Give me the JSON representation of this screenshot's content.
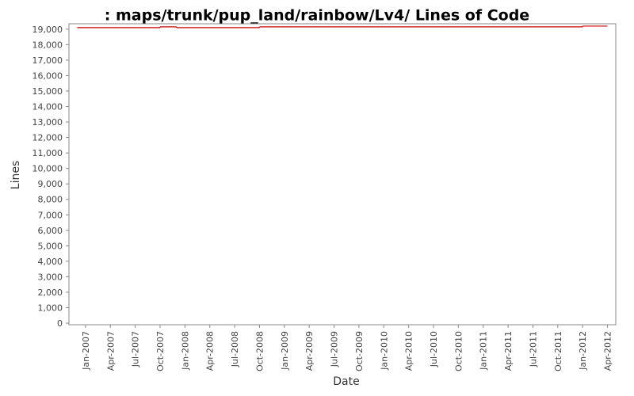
{
  "chart_data": {
    "type": "line",
    "title": ": maps/trunk/pup_land/rainbow/Lv4/ Lines of Code",
    "x_label": "Date",
    "y_label": "Lines",
    "x": [
      "2006-12",
      "2007-10",
      "2007-12",
      "2008-10",
      "2012-01",
      "2012-04"
    ],
    "series": [
      {
        "color": "#cc0000",
        "values": [
          19100,
          19150,
          19100,
          19150,
          19200,
          19200
        ]
      }
    ],
    "xlim": [
      "2006-11",
      "2012-05"
    ],
    "xticks": [
      {
        "value": "2007-01",
        "label": "Jan-2007"
      },
      {
        "value": "2007-04",
        "label": "Apr-2007"
      },
      {
        "value": "2007-07",
        "label": "Jul-2007"
      },
      {
        "value": "2007-10",
        "label": "Oct-2007"
      },
      {
        "value": "2008-01",
        "label": "Jan-2008"
      },
      {
        "value": "2008-04",
        "label": "Apr-2008"
      },
      {
        "value": "2008-07",
        "label": "Jul-2008"
      },
      {
        "value": "2008-10",
        "label": "Oct-2008"
      },
      {
        "value": "2009-01",
        "label": "Jan-2009"
      },
      {
        "value": "2009-04",
        "label": "Apr-2009"
      },
      {
        "value": "2009-07",
        "label": "Jul-2009"
      },
      {
        "value": "2009-10",
        "label": "Oct-2009"
      },
      {
        "value": "2010-01",
        "label": "Jan-2010"
      },
      {
        "value": "2010-04",
        "label": "Apr-2010"
      },
      {
        "value": "2010-07",
        "label": "Jul-2010"
      },
      {
        "value": "2010-10",
        "label": "Oct-2010"
      },
      {
        "value": "2011-01",
        "label": "Jan-2011"
      },
      {
        "value": "2011-04",
        "label": "Apr-2011"
      },
      {
        "value": "2011-07",
        "label": "Jul-2011"
      },
      {
        "value": "2011-10",
        "label": "Oct-2011"
      },
      {
        "value": "2012-01",
        "label": "Jan-2012"
      },
      {
        "value": "2012-04",
        "label": "Apr-2012"
      }
    ],
    "ylim": [
      -100,
      19350
    ],
    "yticks": [
      0,
      {
        "value": 1000,
        "label": "1,000"
      },
      {
        "value": 2000,
        "label": "2,000"
      },
      {
        "value": 3000,
        "label": "3,000"
      },
      {
        "value": 4000,
        "label": "4,000"
      },
      {
        "value": 5000,
        "label": "5,000"
      },
      {
        "value": 6000,
        "label": "6,000"
      },
      {
        "value": 7000,
        "label": "7,000"
      },
      {
        "value": 8000,
        "label": "8,000"
      },
      {
        "value": 9000,
        "label": "9,000"
      },
      {
        "value": 10000,
        "label": "10,000"
      },
      {
        "value": 11000,
        "label": "11,000"
      },
      {
        "value": 12000,
        "label": "12,000"
      },
      {
        "value": 13000,
        "label": "13,000"
      },
      {
        "value": 14000,
        "label": "14,000"
      },
      {
        "value": 15000,
        "label": "15,000"
      },
      {
        "value": 16000,
        "label": "16,000"
      },
      {
        "value": 17000,
        "label": "17,000"
      },
      {
        "value": 18000,
        "label": "18,000"
      },
      {
        "value": 19000,
        "label": "19,000"
      }
    ]
  }
}
